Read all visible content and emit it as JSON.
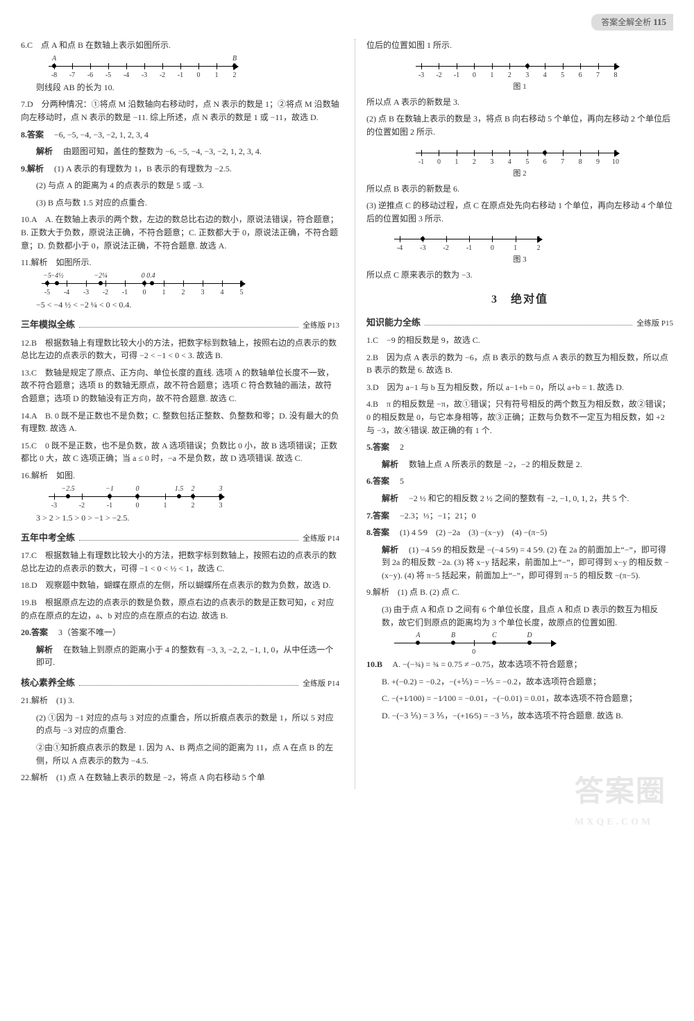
{
  "page": {
    "label": "答案全解全析",
    "number": "115"
  },
  "watermark": {
    "main": "答案圈",
    "sub": "MXQE.COM"
  },
  "left": {
    "i6": {
      "head": "6.C　点 A 和点 B 在数轴上表示如图所示.",
      "tail": "则线段 AB 的长为 10."
    },
    "d6": {
      "ticks": [
        -8,
        -7,
        -6,
        -5,
        -4,
        -3,
        -2,
        -1,
        0,
        1,
        2
      ],
      "A_at": -8,
      "B_at": 2
    },
    "i7": "7.D　分两种情况：①将点 M 沿数轴向右移动时，点 N 表示的数是 1；②将点 M 沿数轴向左移动时，点 N 表示的数是 −11. 综上所述，点 N 表示的数是 1 或 −11，故选 D.",
    "i8": {
      "head": "8.答案",
      "body": "−6, −5, −4, −3, −2, 1, 2, 3, 4",
      "exp_head": "解析",
      "exp": "由题图可知，盖住的整数为 −6, −5, −4, −3, −2, 1, 2, 3, 4."
    },
    "i9": {
      "head": "9.解析",
      "a": "(1) A 表示的有理数为 1，B 表示的有理数为 −2.5.",
      "b": "(2) 与点 A 的距离为 4 的点表示的数是 5 或 −3.",
      "c": "(3) B 点与数 1.5 对应的点重合."
    },
    "i10": "10.A　A. 在数轴上表示的两个数，左边的数总比右边的数小，原说法错误，符合题意；B. 正数大于负数，原说法正确，不符合题意；C. 正数都大于 0，原说法正确，不符合题意；D. 负数都小于 0，原说法正确，不符合题意. 故选 A.",
    "i11": {
      "head": "11.解析　如图所示.",
      "top": [
        "−5",
        "−4 ½",
        "−2 ¼",
        "0 0.4"
      ],
      "ticks": [
        -5,
        -4,
        -3,
        -2,
        -1,
        0,
        1,
        2,
        3,
        4,
        5
      ],
      "order": "−5 < −4 ½ < −2 ¼ < 0 < 0.4."
    },
    "sec1": {
      "title": "三年模拟全练",
      "ref": "全练版 P13"
    },
    "i12": "12.B　根据数轴上有理数比较大小的方法，把数字标到数轴上，按照右边的点表示的数总比左边的点表示的数大，可得 −2 < −1 < 0 < 3. 故选 B.",
    "i13": "13.C　数轴是规定了原点、正方向、单位长度的直线. 选项 A 的数轴单位长度不一致，故不符合题意；选项 B 的数轴无原点，故不符合题意；选项 C 符合数轴的画法，故符合题意；选项 D 的数轴没有正方向，故不符合题意. 故选 C.",
    "i14": "14.A　B. 0 既不是正数也不是负数；C. 整数包括正整数、负整数和零；D. 没有最大的负有理数. 故选 A.",
    "i15": "15.C　0 既不是正数，也不是负数，故 A 选项错误；负数比 0 小，故 B 选项错误；正数都比 0 大，故 C 选项正确；当 a ≤ 0 时，−a 不是负数，故 D 选项错误. 故选 C.",
    "i16": {
      "head": "16.解析　如图.",
      "top": [
        "−2.5",
        "−1",
        "0",
        "1.5",
        "2",
        "3"
      ],
      "ticks": [
        -3,
        -2,
        -1,
        0,
        1,
        2,
        3
      ],
      "order": "3 > 2 > 1.5 > 0 > −1 > −2.5."
    },
    "sec2": {
      "title": "五年中考全练",
      "ref": "全练版 P14"
    },
    "i17": "17.C　根据数轴上有理数比较大小的方法，把数字标到数轴上，按照右边的点表示的数总比左边的点表示的数大，可得 −1 < 0 < ½ < 1，故选 C.",
    "i18": "18.D　观察题中数轴，蝴蝶在原点的左侧，所以蝴蝶所在点表示的数为负数，故选 D.",
    "i19": "19.B　根据原点左边的点表示的数是负数，原点右边的点表示的数是正数可知，c 对应的点在原点的左边，a、b 对应的点在原点的右边. 故选 B.",
    "i20": {
      "head": "20.答案",
      "body": "3（答案不唯一）",
      "exp_head": "解析",
      "exp": "在数轴上到原点的距离小于 4 的整数有 −3, 3, −2, 2, −1, 1, 0，从中任选一个即可."
    },
    "sec3": {
      "title": "核心素养全练",
      "ref": "全练版 P14"
    },
    "i21": {
      "head": "21.解析　(1) 3.",
      "a": "(2) ①因为 −1 对应的点与 3 对应的点重合，所以折痕点表示的数是 1，所以 5 对应的点与 −3 对应的点重合.",
      "b": "②由①知折痕点表示的数是 1. 因为 A、B 两点之间的距离为 11，点 A 在点 B 的左侧，所以 A 点表示的数为 −4.5."
    },
    "i22": "22.解析　(1) 点 A 在数轴上表示的数是 −2，将点 A 向右移动 5 个单"
  },
  "right": {
    "cont": "位后的位置如图 1 所示.",
    "d1": {
      "ticks": [
        -3,
        -2,
        -1,
        0,
        1,
        2,
        3,
        4,
        5,
        6,
        7,
        8
      ],
      "dot_at": 3,
      "cap": "图 1"
    },
    "t1": "所以点 A 表示的新数是 3.",
    "t2": "(2) 点 B 在数轴上表示的数是 3，将点 B 向右移动 5 个单位，再向左移动 2 个单位后的位置如图 2 所示.",
    "d2": {
      "ticks": [
        -1,
        0,
        1,
        2,
        3,
        4,
        5,
        6,
        7,
        8,
        9,
        10
      ],
      "dot_at": 6,
      "cap": "图 2"
    },
    "t3": "所以点 B 表示的新数是 6.",
    "t4": "(3) 逆推点 C 的移动过程，点 C 在原点处先向右移动 1 个单位，再向左移动 4 个单位后的位置如图 3 所示.",
    "d3": {
      "ticks": [
        -4,
        -3,
        -2,
        -1,
        0,
        1,
        2
      ],
      "dot_at": -3,
      "cap": "图 3"
    },
    "t5": "所以点 C 原来表示的数为 −3.",
    "h2": "3　绝对值",
    "sec4": {
      "title": "知识能力全练",
      "ref": "全练版 P15"
    },
    "r1": "1.C　−9 的相反数是 9，故选 C.",
    "r2": "2.B　因为点 A 表示的数为 −6，点 B 表示的数与点 A 表示的数互为相反数，所以点 B 表示的数是 6. 故选 B.",
    "r3": "3.D　因为 a−1 与 b 互为相反数，所以 a−1+b = 0，所以 a+b = 1. 故选 D.",
    "r4": "4.B　π 的相反数是 −π，故①错误；只有符号相反的两个数互为相反数，故②错误；0 的相反数是 0，与它本身相等，故③正确；正数与负数不一定互为相反数，如 +2 与 −3，故④错误. 故正确的有 1 个.",
    "r5": {
      "head": "5.答案",
      "body": "2",
      "exp_head": "解析",
      "exp": "数轴上点 A 所表示的数是 −2，−2 的相反数是 2."
    },
    "r6": {
      "head": "6.答案",
      "body": "5",
      "exp_head": "解析",
      "exp": "−2 ½ 和它的相反数 2 ½ 之间的整数有 −2, −1, 0, 1, 2，共 5 个."
    },
    "r7": {
      "head": "7.答案",
      "body": "−2.3；⅓；−1；21；0"
    },
    "r8": {
      "head": "8.答案",
      "body": "(1) 4 5⁄9　(2) −2a　(3) −(x−y)　(4) −(π−5)",
      "exp_head": "解析",
      "exp": "(1) −4 5⁄9 的相反数是 −(−4 5⁄9) = 4 5⁄9. (2) 在 2a 的前面加上“−”，即可得到 2a 的相反数 −2a. (3) 将 x−y 括起来，前面加上“−”，即可得到 x−y 的相反数 −(x−y). (4) 将 π−5 括起来，前面加上“−”，即可得到 π−5 的相反数 −(π−5)."
    },
    "r9": {
      "head": "9.解析　(1) 点 B. (2) 点 C.",
      "body": "(3) 由于点 A 和点 D 之间有 6 个单位长度，且点 A 和点 D 表示的数互为相反数，故它们到原点的距离均为 3 个单位长度，故原点的位置如图."
    },
    "d9": {
      "labels": [
        "A",
        "B",
        "C",
        "D"
      ],
      "zero_between": "0"
    },
    "r10": {
      "head": "10.B",
      "a": "A. −(−¾) = ¾ = 0.75 ≠ −0.75，故本选项不符合题意；",
      "b": "B. +(−0.2) = −0.2，−(+⅕) = −⅕ = −0.2，故本选项符合题意；",
      "c": "C. −(+1⁄100) = −1⁄100 = −0.01，−(−0.01) = 0.01，故本选项不符合题意；",
      "d": "D. −(−3 ⅕) = 3 ⅕，−(+16⁄5) = −3 ⅕，故本选项不符合题意. 故选 B."
    }
  }
}
